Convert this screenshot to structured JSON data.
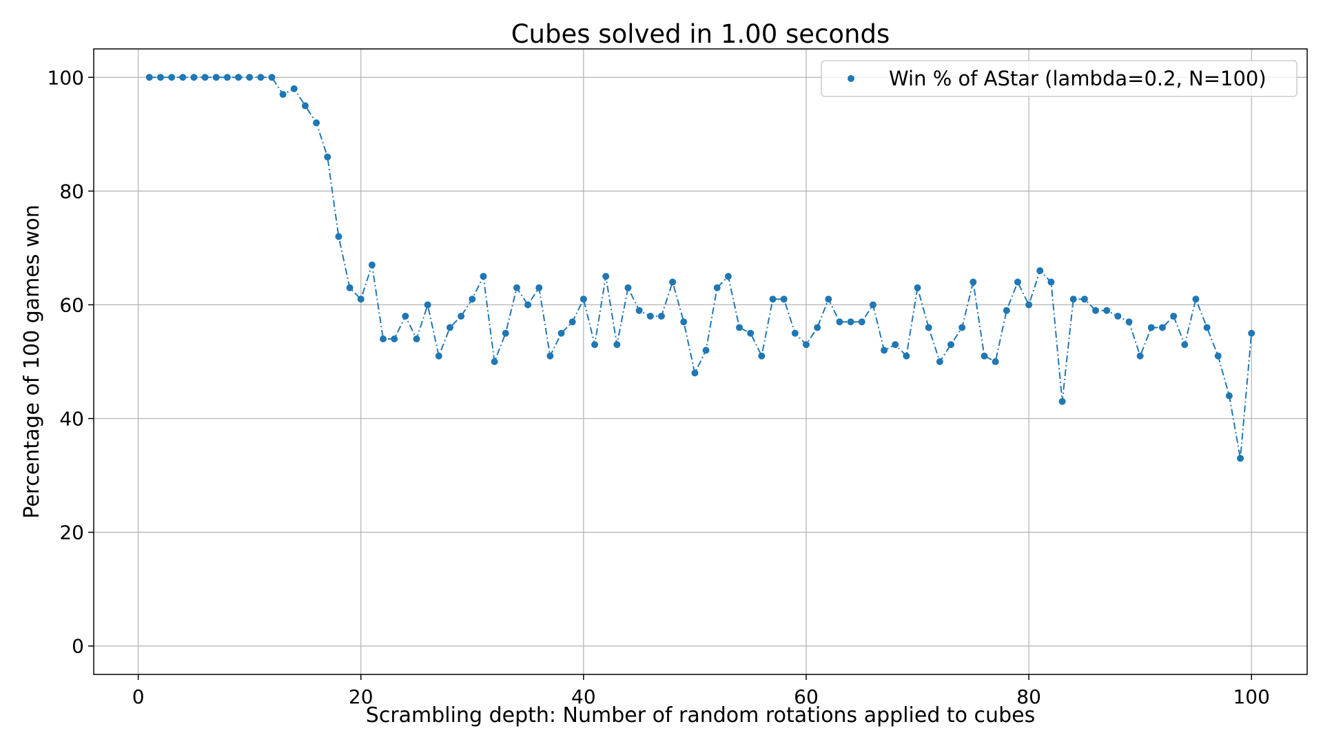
{
  "chart_data": {
    "type": "scatter",
    "title": "Cubes solved in 1.00 seconds",
    "xlabel": "Scrambling depth: Number of random rotations applied to cubes",
    "ylabel": "Percentage of 100 games won",
    "xlim": [
      -4,
      105
    ],
    "ylim": [
      -5,
      105
    ],
    "xticks": [
      0,
      20,
      40,
      60,
      80,
      100
    ],
    "yticks": [
      0,
      20,
      40,
      60,
      80,
      100
    ],
    "grid": true,
    "legend_position": "top-right",
    "line_style": "dash-dot",
    "series_color": "#1f77b4",
    "series": [
      {
        "name": "Win % of AStar (lambda=0.2, N=100)",
        "x": [
          1,
          2,
          3,
          4,
          5,
          6,
          7,
          8,
          9,
          10,
          11,
          12,
          13,
          14,
          15,
          16,
          17,
          18,
          19,
          20,
          21,
          22,
          23,
          24,
          25,
          26,
          27,
          28,
          29,
          30,
          31,
          32,
          33,
          34,
          35,
          36,
          37,
          38,
          39,
          40,
          41,
          42,
          43,
          44,
          45,
          46,
          47,
          48,
          49,
          50,
          51,
          52,
          53,
          54,
          55,
          56,
          57,
          58,
          59,
          60,
          61,
          62,
          63,
          64,
          65,
          66,
          67,
          68,
          69,
          70,
          71,
          72,
          73,
          74,
          75,
          76,
          77,
          78,
          79,
          80,
          81,
          82,
          83,
          84,
          85,
          86,
          87,
          88,
          89,
          90,
          91,
          92,
          93,
          94,
          95,
          96,
          97,
          98,
          99,
          100
        ],
        "y": [
          100,
          100,
          100,
          100,
          100,
          100,
          100,
          100,
          100,
          100,
          100,
          100,
          97,
          98,
          95,
          92,
          86,
          72,
          63,
          61,
          67,
          54,
          54,
          58,
          54,
          60,
          51,
          56,
          58,
          61,
          65,
          50,
          55,
          63,
          60,
          63,
          51,
          55,
          57,
          61,
          53,
          65,
          53,
          63,
          59,
          58,
          58,
          64,
          57,
          48,
          52,
          63,
          65,
          56,
          55,
          51,
          61,
          61,
          55,
          53,
          56,
          61,
          57,
          57,
          57,
          60,
          52,
          53,
          51,
          63,
          56,
          50,
          53,
          56,
          64,
          51,
          50,
          59,
          64,
          60,
          66,
          64,
          43,
          61,
          61,
          59,
          59,
          58,
          57,
          51,
          56,
          56,
          58,
          53,
          61,
          56,
          51,
          44,
          33,
          55
        ]
      }
    ]
  }
}
